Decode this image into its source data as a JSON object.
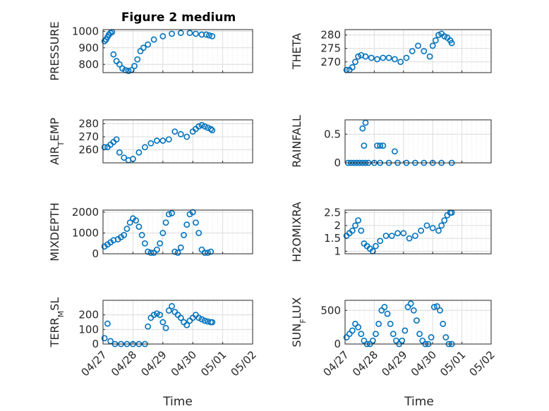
{
  "figure": {
    "title": "Figure 2 medium",
    "marker_color": "#0072BD"
  },
  "chart_data": [
    {
      "type": "scatter",
      "position": "row1-left",
      "ylabel": "PRESSURE",
      "yticks": [
        800,
        900,
        1000
      ],
      "ylim": [
        750,
        1010
      ],
      "x": [
        0.05,
        0.1,
        0.15,
        0.2,
        0.25,
        0.3,
        0.35,
        0.45,
        0.55,
        0.65,
        0.75,
        0.85,
        0.95,
        1.05,
        1.15,
        1.25,
        1.35,
        1.5,
        1.7,
        2.0,
        2.3,
        2.6,
        2.9,
        3.1,
        3.3,
        3.45,
        3.55,
        3.65
      ],
      "y": [
        940,
        950,
        965,
        980,
        990,
        995,
        860,
        820,
        800,
        775,
        765,
        760,
        765,
        790,
        830,
        880,
        900,
        920,
        950,
        970,
        985,
        990,
        990,
        985,
        980,
        980,
        975,
        970
      ]
    },
    {
      "type": "scatter",
      "position": "row1-right",
      "ylabel": "THETA",
      "yticks": [
        270,
        275,
        280
      ],
      "ylim": [
        266,
        282
      ],
      "x": [
        0.05,
        0.15,
        0.25,
        0.35,
        0.45,
        0.55,
        0.7,
        0.9,
        1.1,
        1.3,
        1.5,
        1.7,
        1.9,
        2.1,
        2.3,
        2.5,
        2.7,
        2.9,
        3.0,
        3.1,
        3.2,
        3.3,
        3.4,
        3.5,
        3.6,
        3.65
      ],
      "y": [
        267,
        267,
        268,
        270,
        272,
        272.5,
        272,
        271.5,
        271,
        271.5,
        271.5,
        271,
        270,
        271.5,
        274,
        276,
        274,
        272,
        276,
        278,
        280,
        280.5,
        279.5,
        279,
        278,
        277
      ]
    },
    {
      "type": "scatter",
      "position": "row2-left",
      "ylabel": "AIR_TEMP",
      "yticks": [
        260,
        270,
        280
      ],
      "ylim": [
        250,
        283
      ],
      "x": [
        0.05,
        0.15,
        0.25,
        0.35,
        0.45,
        0.55,
        0.7,
        0.85,
        1.0,
        1.2,
        1.4,
        1.6,
        1.8,
        2.0,
        2.2,
        2.4,
        2.6,
        2.8,
        3.0,
        3.1,
        3.2,
        3.3,
        3.4,
        3.5,
        3.6,
        3.65
      ],
      "y": [
        262,
        262,
        264,
        266,
        268,
        258,
        254,
        252,
        253,
        258,
        262,
        265,
        267,
        267,
        268,
        274,
        272,
        270,
        274,
        276,
        278,
        279,
        278,
        277,
        276,
        275
      ]
    },
    {
      "type": "scatter",
      "position": "row2-right",
      "ylabel": "RAINFALL",
      "yticks": [
        0,
        0.5
      ],
      "ylim": [
        0,
        0.75
      ],
      "x": [
        0.1,
        0.2,
        0.3,
        0.4,
        0.5,
        0.6,
        0.7,
        0.8,
        1.0,
        1.2,
        1.5,
        1.8,
        2.1,
        2.4,
        2.7,
        3.0,
        3.3,
        3.65,
        0.6,
        0.7,
        0.65,
        1.1,
        1.2,
        1.3,
        1.7
      ],
      "y": [
        0,
        0,
        0,
        0,
        0,
        0,
        0,
        0,
        0,
        0,
        0,
        0,
        0,
        0,
        0,
        0,
        0,
        0,
        0.6,
        0.7,
        0.3,
        0.3,
        0.3,
        0.3,
        0.2
      ]
    },
    {
      "type": "scatter",
      "position": "row3-left",
      "ylabel": "MIXDEPTH",
      "yticks": [
        0,
        1000,
        2000
      ],
      "ylim": [
        0,
        2100
      ],
      "x": [
        0.05,
        0.15,
        0.25,
        0.35,
        0.5,
        0.6,
        0.7,
        0.8,
        0.9,
        1.0,
        1.1,
        1.2,
        1.3,
        1.4,
        1.5,
        1.6,
        1.7,
        1.8,
        1.9,
        2.0,
        2.1,
        2.2,
        2.3,
        2.4,
        2.5,
        2.6,
        2.7,
        2.8,
        2.9,
        3.0,
        3.1,
        3.2,
        3.3,
        3.4,
        3.5,
        3.6
      ],
      "y": [
        350,
        450,
        550,
        650,
        700,
        800,
        900,
        1200,
        1500,
        1700,
        1600,
        1300,
        900,
        500,
        100,
        50,
        50,
        200,
        500,
        1000,
        1500,
        1900,
        1950,
        100,
        50,
        300,
        900,
        1400,
        1900,
        2000,
        1500,
        1000,
        200,
        50,
        50,
        100
      ]
    },
    {
      "type": "scatter",
      "position": "row3-right",
      "ylabel": "H2OMIXRA",
      "yticks": [
        1,
        1.5,
        2,
        2.5
      ],
      "ylim": [
        0.9,
        2.6
      ],
      "x": [
        0.05,
        0.15,
        0.25,
        0.35,
        0.45,
        0.55,
        0.65,
        0.75,
        0.85,
        0.95,
        1.05,
        1.2,
        1.4,
        1.6,
        1.8,
        2.0,
        2.2,
        2.4,
        2.6,
        2.8,
        3.0,
        3.2,
        3.3,
        3.4,
        3.5,
        3.6,
        3.65
      ],
      "y": [
        1.6,
        1.7,
        1.8,
        2.0,
        2.2,
        1.8,
        1.3,
        1.2,
        1.1,
        1.0,
        1.2,
        1.4,
        1.6,
        1.6,
        1.7,
        1.7,
        1.5,
        1.6,
        1.8,
        2.0,
        1.9,
        1.8,
        2.0,
        2.2,
        2.4,
        2.5,
        2.5
      ]
    },
    {
      "type": "scatter",
      "position": "row4-left",
      "ylabel": "TERR_MSL",
      "yticks": [
        0,
        100,
        200
      ],
      "ylim": [
        0,
        300
      ],
      "x": [
        0.05,
        0.15,
        0.25,
        0.4,
        0.6,
        0.8,
        1.0,
        1.2,
        1.4,
        1.5,
        1.6,
        1.7,
        1.8,
        1.9,
        2.0,
        2.1,
        2.2,
        2.3,
        2.4,
        2.5,
        2.6,
        2.7,
        2.8,
        2.9,
        3.0,
        3.1,
        3.2,
        3.3,
        3.4,
        3.5,
        3.6,
        3.65
      ],
      "y": [
        40,
        140,
        20,
        0,
        0,
        0,
        0,
        0,
        0,
        120,
        180,
        200,
        210,
        200,
        150,
        110,
        230,
        260,
        220,
        200,
        180,
        150,
        130,
        160,
        180,
        200,
        180,
        170,
        160,
        155,
        150,
        150
      ]
    },
    {
      "type": "scatter",
      "position": "row4-right",
      "ylabel": "SUN_FLUX",
      "yticks": [
        0,
        500
      ],
      "ylim": [
        0,
        650
      ],
      "x": [
        0.05,
        0.15,
        0.25,
        0.35,
        0.45,
        0.55,
        0.65,
        0.75,
        0.85,
        0.95,
        1.05,
        1.15,
        1.25,
        1.35,
        1.45,
        1.55,
        1.65,
        1.75,
        1.85,
        1.95,
        2.05,
        2.15,
        2.25,
        2.35,
        2.45,
        2.55,
        2.65,
        2.75,
        2.85,
        2.95,
        3.05,
        3.15,
        3.25,
        3.35,
        3.45,
        3.55,
        3.65
      ],
      "y": [
        100,
        150,
        200,
        300,
        250,
        150,
        50,
        0,
        0,
        50,
        150,
        300,
        500,
        550,
        450,
        300,
        150,
        50,
        0,
        50,
        200,
        550,
        600,
        500,
        350,
        150,
        50,
        0,
        0,
        100,
        550,
        560,
        500,
        300,
        100,
        0,
        0
      ]
    }
  ],
  "xaxis": {
    "label": "Time",
    "ticks": [
      "04/27",
      "04/28",
      "04/29",
      "04/30",
      "05/01",
      "05/02"
    ],
    "xlim": [
      0,
      5
    ]
  }
}
